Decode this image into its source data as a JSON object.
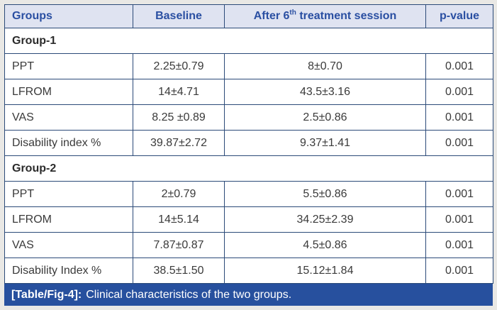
{
  "colors": {
    "page_bg": "#e9e8e5",
    "border": "#2b4a78",
    "header_bg": "#dfe3f1",
    "header_text": "#2a4fa2",
    "body_text": "#3a3a3a",
    "caption_bg": "#27509e",
    "caption_text": "#ffffff"
  },
  "table": {
    "headers": {
      "groups": "Groups",
      "baseline": "Baseline",
      "after_prefix": "After 6",
      "after_sup": "th",
      "after_suffix": " treatment session",
      "p_value": "p-value"
    },
    "sections": [
      {
        "title": "Group-1",
        "rows": [
          {
            "label": "PPT",
            "baseline": "2.25±0.79",
            "after": "8±0.70",
            "p": "0.001"
          },
          {
            "label": "LFROM",
            "baseline": "14±4.71",
            "after": "43.5±3.16",
            "p": "0.001"
          },
          {
            "label": "VAS",
            "baseline": "8.25 ±0.89",
            "after": "2.5±0.86",
            "p": "0.001"
          },
          {
            "label": "Disability index %",
            "baseline": "39.87±2.72",
            "after": "9.37±1.41",
            "p": "0.001"
          }
        ]
      },
      {
        "title": "Group-2",
        "rows": [
          {
            "label": "PPT",
            "baseline": "2±0.79",
            "after": "5.5±0.86",
            "p": "0.001"
          },
          {
            "label": "LFROM",
            "baseline": "14±5.14",
            "after": "34.25±2.39",
            "p": "0.001"
          },
          {
            "label": "VAS",
            "baseline": "7.87±0.87",
            "after": "4.5±0.86",
            "p": "0.001"
          },
          {
            "label": "Disability Index %",
            "baseline": "38.5±1.50",
            "after": "15.12±1.84",
            "p": "0.001"
          }
        ]
      }
    ]
  },
  "caption": {
    "tag": "[Table/Fig-4]:",
    "text": "Clinical characteristics of the two groups."
  }
}
